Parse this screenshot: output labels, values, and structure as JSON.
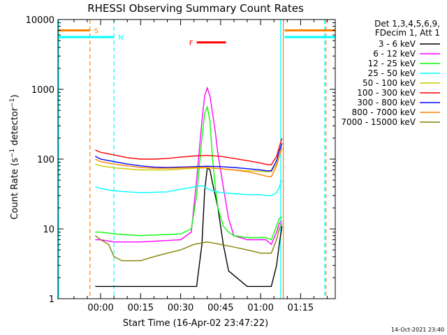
{
  "chart_data": {
    "type": "line",
    "title": "RHESSI Observing Summary Count Rates",
    "xlabel": "Start Time (16-Apr-02 23:47:22)",
    "ylabel": "Count Rate (s⁻¹ detector⁻¹)",
    "ylabel_parts": [
      "Count Rate (s",
      "−1",
      " detector",
      "−1",
      ")"
    ],
    "yscale": "log",
    "ylim": [
      1,
      10000
    ],
    "xlim_minutes": [
      -16,
      88
    ],
    "x_ticks": [
      {
        "label": "00:00",
        "minute": 0
      },
      {
        "label": "00:15",
        "minute": 15
      },
      {
        "label": "00:30",
        "minute": 30
      },
      {
        "label": "00:45",
        "minute": 45
      },
      {
        "label": "01:00",
        "minute": 60
      },
      {
        "label": "01:15",
        "minute": 75
      }
    ],
    "y_ticks": [
      {
        "label": "1",
        "value": 1
      },
      {
        "label": "10",
        "value": 10
      },
      {
        "label": "100",
        "value": 100
      },
      {
        "label": "1000",
        "value": 1000
      },
      {
        "label": "10000",
        "value": 10000
      }
    ],
    "legend_header": [
      "Det 1,3,4,5,6,9,",
      "FDecim 1, Att 1"
    ],
    "legend_placement": "right",
    "series": [
      {
        "name": "3 - 6 keV",
        "color": "#000000",
        "x": [
          -2,
          5,
          15,
          30,
          36,
          38,
          39,
          40,
          41,
          42,
          44,
          46,
          48,
          55,
          62,
          64,
          66,
          67,
          68
        ],
        "values": [
          1.5,
          1.5,
          1.5,
          1.5,
          1.5,
          6,
          35,
          75,
          70,
          45,
          20,
          6,
          2.5,
          1.5,
          1.5,
          1.5,
          3,
          6,
          11
        ]
      },
      {
        "name": "6 - 12 keV",
        "color": "#ff00ff",
        "x": [
          -2,
          0,
          5,
          15,
          30,
          34,
          36,
          38,
          39,
          40,
          41,
          42,
          43,
          44,
          46,
          48,
          50,
          55,
          62,
          64,
          66,
          67,
          68
        ],
        "values": [
          7,
          7,
          6.5,
          6.5,
          7,
          9,
          50,
          350,
          800,
          1050,
          800,
          450,
          250,
          120,
          40,
          14,
          8,
          7,
          7,
          6,
          9,
          12,
          13
        ]
      },
      {
        "name": "12 - 25 keV",
        "color": "#00ff00",
        "x": [
          -2,
          0,
          5,
          15,
          30,
          34,
          36,
          38,
          39,
          40,
          41,
          42,
          43,
          44,
          46,
          48,
          50,
          55,
          62,
          64,
          66,
          67,
          68
        ],
        "values": [
          9,
          9,
          8.5,
          8,
          8.5,
          10,
          30,
          200,
          450,
          560,
          350,
          100,
          40,
          20,
          11,
          9,
          8,
          7.5,
          7.5,
          7,
          11,
          14,
          15
        ]
      },
      {
        "name": "25 - 50 keV",
        "color": "#00ffff",
        "x": [
          -2,
          0,
          5,
          15,
          25,
          30,
          35,
          38,
          40,
          42,
          45,
          50,
          55,
          60,
          62,
          64,
          66,
          67,
          68
        ],
        "values": [
          40,
          38,
          35,
          33,
          34,
          37,
          40,
          42,
          38,
          35,
          33,
          32,
          31,
          31,
          30,
          30,
          33,
          40,
          50
        ]
      },
      {
        "name": "50 - 100 keV",
        "color": "#cccc00",
        "x": [
          -2,
          0,
          5,
          15,
          25,
          30,
          35,
          40,
          45,
          50,
          55,
          60,
          62,
          64,
          66,
          67,
          68
        ],
        "values": [
          85,
          80,
          75,
          70,
          70,
          72,
          74,
          75,
          73,
          70,
          68,
          67,
          66,
          66,
          85,
          110,
          140
        ]
      },
      {
        "name": "100 - 300 keV",
        "color": "#ff0000",
        "x": [
          -2,
          0,
          5,
          10,
          15,
          20,
          25,
          30,
          35,
          40,
          45,
          50,
          55,
          60,
          62,
          64,
          66,
          67,
          68
        ],
        "values": [
          135,
          125,
          115,
          105,
          100,
          100,
          102,
          107,
          111,
          113,
          110,
          102,
          95,
          88,
          84,
          83,
          110,
          150,
          200
        ]
      },
      {
        "name": "300 - 800 keV",
        "color": "#0000ff",
        "x": [
          -2,
          0,
          5,
          10,
          15,
          20,
          25,
          30,
          35,
          40,
          45,
          50,
          55,
          60,
          62,
          64,
          66,
          67,
          68
        ],
        "values": [
          110,
          100,
          92,
          85,
          80,
          77,
          76,
          77,
          78,
          79,
          78,
          76,
          73,
          70,
          68,
          68,
          95,
          130,
          170
        ]
      },
      {
        "name": "800 - 7000 keV",
        "color": "#ff8000",
        "x": [
          -2,
          0,
          5,
          10,
          15,
          20,
          25,
          30,
          35,
          40,
          45,
          50,
          55,
          60,
          62,
          64,
          66,
          67,
          68
        ],
        "values": [
          100,
          92,
          85,
          80,
          76,
          74,
          74,
          75,
          76,
          76,
          73,
          70,
          66,
          60,
          57,
          56,
          80,
          110,
          150
        ]
      },
      {
        "name": "7000 - 15000 keV",
        "color": "#808000",
        "x": [
          -2,
          0,
          3,
          5,
          8,
          10,
          15,
          20,
          25,
          30,
          35,
          40,
          45,
          50,
          55,
          60,
          62,
          64,
          66,
          67,
          68
        ],
        "values": [
          8,
          7,
          6,
          4,
          3.5,
          3.5,
          3.5,
          4,
          4.5,
          5,
          6,
          6.5,
          6,
          5.5,
          5,
          4.5,
          4.5,
          4.5,
          7,
          10,
          12
        ]
      }
    ],
    "annotations": [
      {
        "label": "S",
        "color": "#ff8000",
        "x0": -16,
        "x1": -4,
        "y": 7000
      },
      {
        "label": "N",
        "color": "#00ffff",
        "x0": -16,
        "x1": 5,
        "y": 5600
      },
      {
        "label": "F",
        "color": "#ff0000",
        "x0": 36,
        "x1": 47,
        "y": 4700
      },
      {
        "label": "",
        "color": "#ff8000",
        "x0": 69,
        "x1": 88,
        "y": 7000
      },
      {
        "label": "",
        "color": "#00ffff",
        "x0": 69,
        "x1": 88,
        "y": 5600
      }
    ],
    "vlines": [
      {
        "x": -4,
        "color": "#ff8000",
        "dashed": true
      },
      {
        "x": 5,
        "color": "#00ffff",
        "dashed": true
      },
      {
        "x": 67.5,
        "color": "#00ffff",
        "dashed": false
      },
      {
        "x": 68.5,
        "color": "#ff8000",
        "dashed": false
      },
      {
        "x": 84,
        "color": "#00ffff",
        "dashed": true
      },
      {
        "x": 84.5,
        "color": "#ff8000",
        "dashed": true
      }
    ],
    "timestamp": "14-Oct-2021 23:40"
  }
}
